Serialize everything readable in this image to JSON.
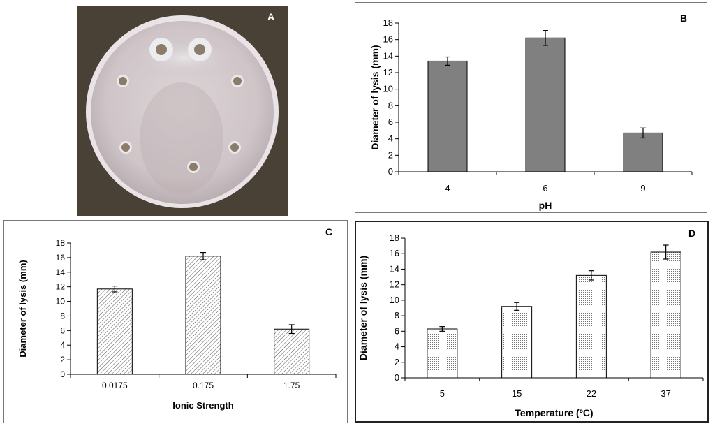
{
  "panels": {
    "a": {
      "letter": "A"
    },
    "b": {
      "letter": "B"
    },
    "c": {
      "letter": "C"
    },
    "d": {
      "letter": "D"
    }
  },
  "colors": {
    "photo_background": "#4a4136",
    "plate": "#d8cfd2",
    "bar_solid": "#808080",
    "bar_hatched": "#ffffff",
    "axis": "#000000"
  },
  "chart_data": [
    {
      "panel": "B",
      "type": "bar",
      "bar_style": "solid-grey",
      "categories": [
        "4",
        "6",
        "9"
      ],
      "values": [
        13.4,
        16.2,
        4.7
      ],
      "errors": [
        0.5,
        0.9,
        0.6
      ],
      "xlabel": "pH",
      "ylabel": "Diameter of lysis  (mm)",
      "ylim": [
        0,
        18
      ],
      "yticks": [
        "0",
        "2",
        "4",
        "6",
        "8",
        "10",
        "12",
        "14",
        "16",
        "18"
      ],
      "grid": false,
      "legend": "none"
    },
    {
      "panel": "C",
      "type": "bar",
      "bar_style": "diagonal-hatch",
      "categories": [
        "0.0175",
        "0.175",
        "1.75"
      ],
      "values": [
        11.7,
        16.2,
        6.2
      ],
      "errors": [
        0.4,
        0.5,
        0.6
      ],
      "xlabel": "Ionic Strength",
      "ylabel": "Diameter of lysis  (mm)",
      "ylim": [
        0,
        18
      ],
      "yticks": [
        "0",
        "2",
        "4",
        "6",
        "8",
        "10",
        "12",
        "14",
        "16",
        "18"
      ],
      "grid": false,
      "legend": "none"
    },
    {
      "panel": "D",
      "type": "bar",
      "bar_style": "dotted",
      "categories": [
        "5",
        "15",
        "22",
        "37"
      ],
      "values": [
        6.3,
        9.2,
        13.2,
        16.2
      ],
      "errors": [
        0.3,
        0.5,
        0.6,
        0.9
      ],
      "xlabel": "Temperature (ºC)",
      "ylabel": "Diameter of lysis  (mm)",
      "ylim": [
        0,
        18
      ],
      "yticks": [
        "0",
        "2",
        "4",
        "6",
        "8",
        "10",
        "12",
        "14",
        "16",
        "18"
      ],
      "grid": false,
      "legend": "none"
    }
  ]
}
